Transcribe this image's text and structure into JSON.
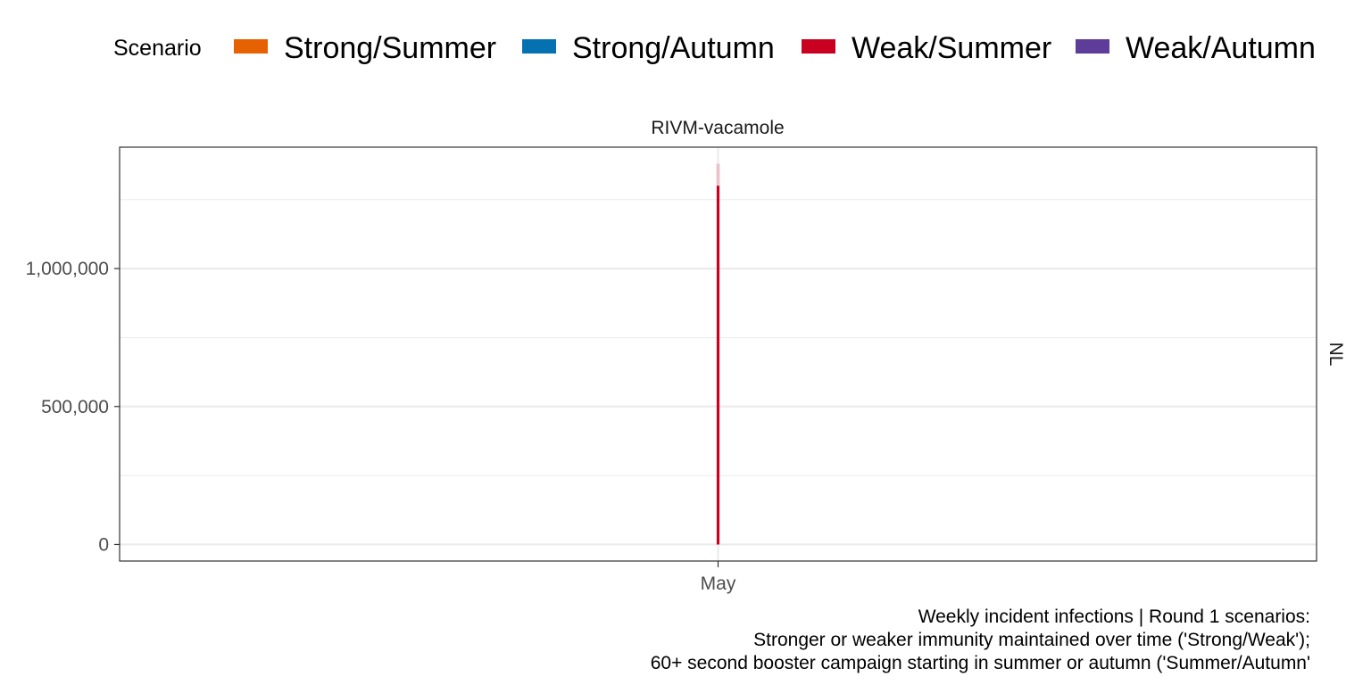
{
  "chart_data": {
    "type": "area",
    "panel_title": "RIVM-vacamole",
    "facet_label": "NL",
    "legend": {
      "title": "Scenario",
      "position": "top",
      "entries": [
        {
          "name": "Strong/Summer",
          "color": "#e66101"
        },
        {
          "name": "Strong/Autumn",
          "color": "#0571b0"
        },
        {
          "name": "Weak/Summer",
          "color": "#ca0020"
        },
        {
          "name": "Weak/Autumn",
          "color": "#5e3c99"
        }
      ]
    },
    "x_ticks": [
      "May"
    ],
    "y_ticks": [
      {
        "value": 0,
        "label": "0"
      },
      {
        "value": 500000,
        "label": "500,000"
      },
      {
        "value": 1000000,
        "label": "1,000,000"
      }
    ],
    "ylim": [
      -60000,
      1440000
    ],
    "grid": true,
    "series": [
      {
        "name": "Weak/Summer",
        "color": "#ca0020",
        "x": [
          "May"
        ],
        "values": [
          1300000
        ],
        "upper": [
          1380000
        ]
      }
    ],
    "caption": [
      "Weekly incident infections | Round 1 scenarios:",
      "Stronger or weaker immunity maintained over time ('Strong/Weak');",
      "60+ second booster campaign starting in summer or autumn ('Summer/Autumn'"
    ]
  }
}
